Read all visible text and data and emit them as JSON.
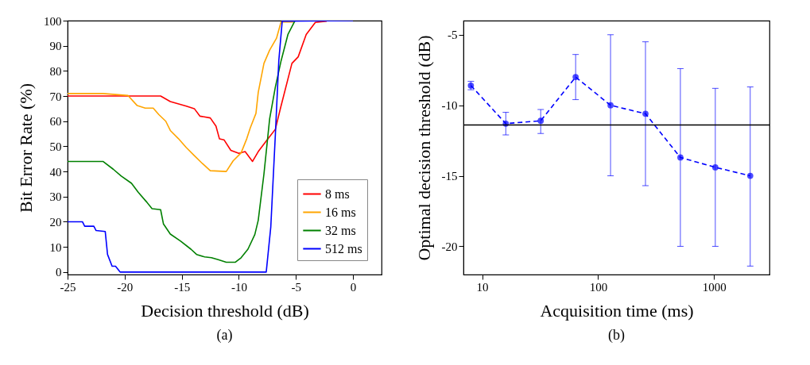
{
  "chart_data": [
    {
      "type": "line",
      "xlabel": "Decision threshold (dB)",
      "ylabel": "Bit Error Rate (%)",
      "xlim": [
        -25,
        2.5
      ],
      "ylim": [
        -1,
        100
      ],
      "xticks": [
        -25,
        -20,
        -15,
        -10,
        -5,
        0
      ],
      "yticks": [
        0,
        10,
        20,
        30,
        40,
        50,
        60,
        70,
        80,
        90,
        100
      ],
      "grid": false,
      "legend": "bottom right",
      "annotations": [
        "(a)"
      ],
      "series": [
        {
          "name": "8 ms",
          "color": "#ff0000",
          "x": [
            -25,
            -16.85,
            -16.0,
            -14.6,
            -13.9,
            -13.4,
            -12.5,
            -12.0,
            -11.7,
            -11.3,
            -10.7,
            -10.0,
            -9.45,
            -8.8,
            -8.3,
            -7.6,
            -6.8,
            -6.35,
            -5.35,
            -4.8,
            -4.1,
            -3.3,
            -2.3
          ],
          "values": [
            70,
            70,
            67.8,
            66,
            65,
            62,
            61.3,
            58,
            53,
            52.6,
            48.4,
            47.2,
            47.9,
            44,
            47.9,
            52.1,
            56.8,
            65.2,
            83,
            85.6,
            94.5,
            99.3,
            99.8
          ]
        },
        {
          "name": "16 ms",
          "color": "#ffa500",
          "x": [
            -25,
            -21.9,
            -19.7,
            -18.9,
            -18.2,
            -17.5,
            -17.0,
            -16.4,
            -16.0,
            -15.3,
            -14.6,
            -13.9,
            -13.2,
            -12.5,
            -11.1,
            -10.5,
            -9.8,
            -9.3,
            -9.0,
            -8.5,
            -8.3,
            -7.8,
            -7.3,
            -6.7,
            -6.3,
            -5.2
          ],
          "values": [
            71,
            71,
            70.2,
            66.2,
            65.2,
            65.2,
            62.6,
            60,
            56.3,
            53.1,
            49.5,
            46.3,
            43.2,
            40.3,
            40,
            44.2,
            47.4,
            53.1,
            57.3,
            63.1,
            71.5,
            83,
            88.3,
            93,
            99.5,
            99.5
          ]
        },
        {
          "name": "32 ms",
          "color": "#008000",
          "x": [
            -25,
            -21.9,
            -21.0,
            -20.3,
            -19.4,
            -18.8,
            -18.1,
            -17.6,
            -16.85,
            -16.6,
            -16.0,
            -15.1,
            -14.2,
            -13.7,
            -13.0,
            -12.4,
            -11.8,
            -11.1,
            -10.3,
            -9.8,
            -9.2,
            -8.6,
            -8.3,
            -7.8,
            -7.3,
            -6.8,
            -6.3,
            -5.7,
            -5.1
          ],
          "values": [
            44,
            44,
            40.9,
            38.2,
            35.3,
            31.7,
            28,
            25.2,
            24.8,
            19.1,
            15.1,
            12.3,
            9.1,
            7,
            6,
            5.7,
            4.9,
            3.9,
            3.9,
            5.7,
            9.1,
            14.9,
            20.6,
            39,
            61,
            73.6,
            84,
            94.5,
            99.8
          ]
        },
        {
          "name": "512 ms",
          "color": "#0000ff",
          "x": [
            -25,
            -23.7,
            -23.5,
            -22.7,
            -22.5,
            -21.7,
            -21.5,
            -21.1,
            -20.8,
            -20.4,
            -7.6,
            -7.2,
            -6.8,
            -6.5,
            -6.2,
            0
          ],
          "values": [
            20,
            20,
            18.2,
            18.2,
            16.5,
            16.1,
            7,
            2.3,
            2.3,
            0,
            0,
            18,
            54.7,
            84,
            99.8,
            100
          ]
        }
      ]
    },
    {
      "type": "line",
      "xlabel": "Acquisition time (ms)",
      "ylabel": "Optimal decision threshold (dB)",
      "log": "x",
      "xlim": [
        6.9,
        3000
      ],
      "ylim": [
        -22,
        -4
      ],
      "xticks": [
        10,
        100,
        1000
      ],
      "yticks": [
        -5,
        -10,
        -15,
        -20
      ],
      "grid": false,
      "annotations": [
        "(b)"
      ],
      "ref_lines": [
        {
          "axis": "y",
          "value": -11.4,
          "color": "#000000"
        }
      ],
      "series": [
        {
          "color": "#0000ff",
          "marker": "circle",
          "line_style": "dashed",
          "x": [
            8,
            16,
            32,
            64,
            128,
            256,
            512,
            1024,
            2048
          ],
          "values": [
            -8.6,
            -11.3,
            -11.1,
            -8.0,
            -10.0,
            -10.6,
            -13.7,
            -14.4,
            -15.0
          ],
          "errors": [
            [
              -8.9,
              -8.3
            ],
            [
              -12.1,
              -10.5
            ],
            [
              -12.0,
              -10.3
            ],
            [
              -9.6,
              -6.4
            ],
            [
              -15,
              -5
            ],
            [
              -15.7,
              -5.5
            ],
            [
              -20,
              -7.4
            ],
            [
              -20,
              -8.8
            ],
            [
              -21.4,
              -8.7
            ]
          ]
        }
      ]
    }
  ]
}
